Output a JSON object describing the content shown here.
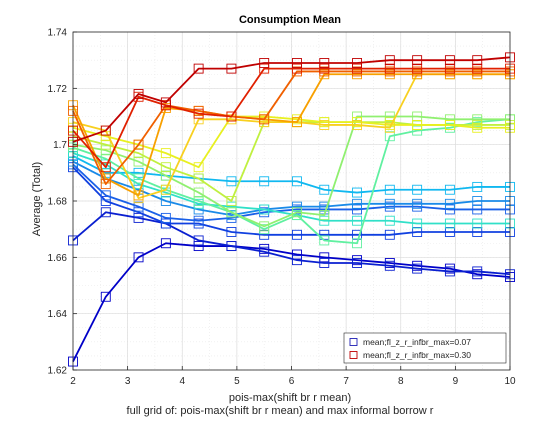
{
  "chart_data": {
    "type": "line",
    "title": "Consumption Mean",
    "xlabel": "pois-max(shift br r mean)",
    "ylabel": "Average (Total)",
    "footnote": "full grid of: pois-max(shift br r mean) and max informal borrow r",
    "xlim": [
      2,
      10
    ],
    "ylim": [
      1.62,
      1.74
    ],
    "xticks": [
      "2",
      "3",
      "4",
      "5",
      "6",
      "7",
      "8",
      "9",
      "10"
    ],
    "yticks": [
      "1.62",
      "1.64",
      "1.66",
      "1.68",
      "1.7",
      "1.72",
      "1.74"
    ],
    "grid": true,
    "legend_position": "bottom-right",
    "legend": [
      {
        "label": "mean;fl_z_r_infbr_max=0.07",
        "color": "#1f1fb4"
      },
      {
        "label": "mean;fl_z_r_infbr_max=0.30",
        "color": "#c00000"
      }
    ],
    "x": [
      2,
      2.6,
      3.2,
      3.7,
      4.3,
      4.9,
      5.5,
      6.1,
      6.6,
      7.2,
      7.8,
      8.3,
      8.9,
      9.4,
      10
    ],
    "series": [
      {
        "color": "#0000c8",
        "values": [
          1.623,
          1.646,
          1.66,
          1.665,
          1.664,
          1.664,
          1.663,
          1.661,
          1.66,
          1.659,
          1.658,
          1.657,
          1.656,
          1.654,
          1.653
        ]
      },
      {
        "color": "#0a1fd0",
        "values": [
          1.666,
          1.676,
          1.674,
          1.672,
          1.666,
          1.664,
          1.662,
          1.659,
          1.658,
          1.658,
          1.657,
          1.656,
          1.655,
          1.655,
          1.654
        ]
      },
      {
        "color": "#1040e0",
        "values": [
          1.692,
          1.68,
          1.676,
          1.672,
          1.672,
          1.669,
          1.668,
          1.668,
          1.668,
          1.668,
          1.668,
          1.669,
          1.669,
          1.669,
          1.669
        ]
      },
      {
        "color": "#1a60e8",
        "values": [
          1.693,
          1.682,
          1.678,
          1.674,
          1.673,
          1.674,
          1.676,
          1.677,
          1.677,
          1.677,
          1.678,
          1.678,
          1.677,
          1.677,
          1.677
        ]
      },
      {
        "color": "#1a8ae8",
        "values": [
          1.694,
          1.688,
          1.684,
          1.68,
          1.677,
          1.675,
          1.677,
          1.678,
          1.678,
          1.679,
          1.679,
          1.679,
          1.679,
          1.68,
          1.68
        ]
      },
      {
        "color": "#10b8f0",
        "values": [
          1.696,
          1.69,
          1.69,
          1.689,
          1.688,
          1.687,
          1.687,
          1.687,
          1.684,
          1.683,
          1.684,
          1.684,
          1.684,
          1.685,
          1.685
        ]
      },
      {
        "color": "#30e0c8",
        "values": [
          1.697,
          1.693,
          1.686,
          1.683,
          1.679,
          1.678,
          1.677,
          1.675,
          1.673,
          1.673,
          1.673,
          1.672,
          1.672,
          1.672,
          1.672
        ]
      },
      {
        "color": "#60f0a0",
        "values": [
          1.699,
          1.695,
          1.688,
          1.684,
          1.68,
          1.676,
          1.67,
          1.675,
          1.666,
          1.665,
          1.703,
          1.705,
          1.706,
          1.708,
          1.709
        ]
      },
      {
        "color": "#90f070",
        "values": [
          1.7,
          1.698,
          1.694,
          1.689,
          1.683,
          1.676,
          1.671,
          1.676,
          1.675,
          1.71,
          1.71,
          1.71,
          1.709,
          1.709,
          1.709
        ]
      },
      {
        "color": "#c0f040",
        "values": [
          1.703,
          1.7,
          1.697,
          1.692,
          1.688,
          1.68,
          1.708,
          1.708,
          1.708,
          1.708,
          1.708,
          1.707,
          1.707,
          1.707,
          1.707
        ]
      },
      {
        "color": "#e8f020",
        "values": [
          1.706,
          1.703,
          1.7,
          1.697,
          1.692,
          1.71,
          1.71,
          1.709,
          1.708,
          1.708,
          1.707,
          1.707,
          1.707,
          1.706,
          1.706
        ]
      },
      {
        "color": "#f8d020",
        "values": [
          1.708,
          1.705,
          1.681,
          1.684,
          1.709,
          1.709,
          1.708,
          1.708,
          1.707,
          1.707,
          1.706,
          1.725,
          1.725,
          1.725,
          1.725
        ]
      },
      {
        "color": "#f8a000",
        "values": [
          1.714,
          1.688,
          1.682,
          1.713,
          1.712,
          1.71,
          1.709,
          1.708,
          1.725,
          1.725,
          1.725,
          1.725,
          1.725,
          1.725,
          1.725
        ]
      },
      {
        "color": "#f06000",
        "values": [
          1.712,
          1.686,
          1.7,
          1.714,
          1.712,
          1.71,
          1.709,
          1.726,
          1.726,
          1.726,
          1.726,
          1.726,
          1.726,
          1.726,
          1.726
        ]
      },
      {
        "color": "#e02000",
        "values": [
          1.705,
          1.692,
          1.717,
          1.714,
          1.711,
          1.71,
          1.727,
          1.727,
          1.727,
          1.727,
          1.727,
          1.727,
          1.727,
          1.727,
          1.727
        ]
      },
      {
        "color": "#c00000",
        "values": [
          1.701,
          1.705,
          1.718,
          1.715,
          1.727,
          1.727,
          1.729,
          1.729,
          1.729,
          1.729,
          1.73,
          1.73,
          1.73,
          1.73,
          1.731
        ]
      }
    ]
  }
}
